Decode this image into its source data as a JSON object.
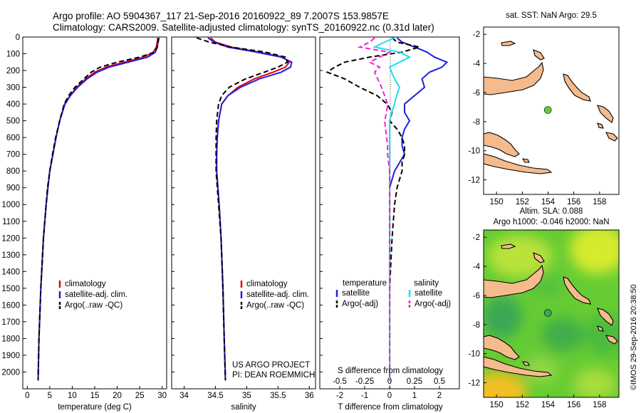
{
  "header": {
    "line1": "Argo profile: AO 5904367_117 21-Sep-2016 20160922_89 7.2007S 153.9857E",
    "line2": "Climatology: CARS2009. Satellite-adjusted climatology: synTS_20160922.nc (0.31d later)"
  },
  "credit": "©IMOS 29-Sep-2016 20:38:50",
  "colors": {
    "climatology": "#e8000b",
    "satellite": "#1f1fe0",
    "argo": "#000000",
    "cyan": "#22ddee",
    "magenta": "#ee22dd",
    "land": "#f5bb8c",
    "dot": "#66cc33"
  },
  "chart_data": [
    {
      "type": "line",
      "name": "temperature",
      "xlabel": "temperature (deg C)",
      "ylabel": "",
      "xlim": [
        -1,
        31
      ],
      "ylim": [
        2100,
        0
      ],
      "xticks": [
        "0",
        "5",
        "10",
        "15",
        "20",
        "25",
        "30"
      ],
      "yticks": [
        "0",
        "100",
        "200",
        "300",
        "400",
        "500",
        "600",
        "700",
        "800",
        "900",
        "1000",
        "1100",
        "1200",
        "1300",
        "1400",
        "1500",
        "1600",
        "1700",
        "1800",
        "1900",
        "2000"
      ],
      "legend": [
        "climatology",
        "satellite-adj. clim.",
        "Argo(..raw -QC)"
      ],
      "depth": [
        5,
        30,
        60,
        90,
        120,
        150,
        180,
        210,
        250,
        300,
        350,
        400,
        500,
        600,
        700,
        800,
        900,
        1000,
        1200,
        1500,
        1800,
        2050
      ],
      "series": [
        {
          "name": "climatology",
          "color": "#e8000b",
          "values": [
            29.0,
            28.9,
            28.7,
            28.0,
            26.0,
            21.5,
            17.5,
            15.0,
            13.0,
            11.0,
            9.5,
            8.3,
            7.2,
            6.4,
            5.7,
            5.0,
            4.6,
            4.2,
            3.6,
            3.0,
            2.6,
            2.4
          ]
        },
        {
          "name": "satellite-adj. clim.",
          "color": "#1f1fe0",
          "values": [
            29.3,
            29.1,
            28.9,
            28.5,
            26.8,
            22.5,
            18.2,
            15.5,
            13.3,
            11.2,
            9.6,
            8.4,
            7.2,
            6.4,
            5.7,
            5.0,
            4.6,
            4.2,
            3.6,
            3.0,
            2.6,
            2.4
          ]
        },
        {
          "name": "Argo(..raw -QC)",
          "color": "#000000",
          "dashed": true,
          "values": [
            29.2,
            29.1,
            28.9,
            28.4,
            25.0,
            20.0,
            16.2,
            14.2,
            12.6,
            10.6,
            9.2,
            8.2,
            7.2,
            6.3,
            5.6,
            5.0,
            4.5,
            4.2,
            3.6,
            3.0,
            2.6,
            2.4
          ]
        }
      ]
    },
    {
      "type": "line",
      "name": "salinity",
      "xlabel": "salinity",
      "xlim": [
        33.8,
        36.1
      ],
      "ylim": [
        2100,
        0
      ],
      "xticks": [
        "34",
        "34.5",
        "35",
        "35.5",
        "36"
      ],
      "legend": [
        "climatology",
        "satellite-adj. clim.",
        "Argo(..raw -QC)"
      ],
      "annotation": [
        "US ARGO PROJECT",
        "PI: DEAN ROEMMICH"
      ],
      "depth": [
        5,
        30,
        60,
        90,
        120,
        150,
        180,
        210,
        250,
        300,
        350,
        400,
        500,
        600,
        700,
        800,
        900,
        1000,
        1200,
        1500,
        1800,
        2050
      ],
      "series": [
        {
          "name": "climatology",
          "color": "#e8000b",
          "values": [
            34.42,
            34.5,
            34.75,
            35.2,
            35.58,
            35.68,
            35.62,
            35.42,
            35.12,
            34.86,
            34.7,
            34.6,
            34.55,
            34.53,
            34.52,
            34.52,
            34.54,
            34.56,
            34.59,
            34.62,
            34.64,
            34.66
          ]
        },
        {
          "name": "satellite-adj. clim.",
          "color": "#1f1fe0",
          "values": [
            34.38,
            34.48,
            34.7,
            35.15,
            35.55,
            35.72,
            35.7,
            35.55,
            35.2,
            34.9,
            34.7,
            34.6,
            34.55,
            34.53,
            34.52,
            34.52,
            34.54,
            34.56,
            34.59,
            34.62,
            34.64,
            34.66
          ]
        },
        {
          "name": "Argo(..raw -QC)",
          "color": "#000000",
          "dashed": true,
          "values": [
            34.2,
            34.4,
            34.75,
            35.3,
            35.62,
            35.65,
            35.5,
            35.28,
            34.98,
            34.72,
            34.6,
            34.55,
            34.52,
            34.51,
            34.51,
            34.51,
            34.53,
            34.55,
            34.59,
            34.62,
            34.64,
            34.66
          ]
        }
      ]
    },
    {
      "type": "line",
      "name": "differences",
      "xlabel": "T difference from climatology",
      "xlabel_top": "S difference from climatology",
      "xlim_T": [
        -2.8,
        2.8
      ],
      "xlim_S": [
        -0.7,
        0.7
      ],
      "ylim": [
        2100,
        0
      ],
      "xticks_T": [
        "-2",
        "-1",
        "0",
        "1",
        "2"
      ],
      "xticks_S": [
        "-0.5",
        "-0.25",
        "0",
        "0.25",
        "0.5"
      ],
      "legend_left_title": "temperature",
      "legend_right_title": "salinity",
      "legend": [
        "satellite",
        "Argo(-adj)",
        "satellite",
        "Argo(-adj)"
      ],
      "depth": [
        5,
        30,
        60,
        90,
        120,
        150,
        180,
        210,
        250,
        300,
        350,
        400,
        450,
        500,
        550,
        600,
        650,
        700,
        750,
        800,
        900,
        1000,
        1200,
        1500,
        1800,
        2050
      ],
      "series": [
        {
          "name": "satellite",
          "group": "temperature",
          "color": "#1f1fe0",
          "values": [
            0.3,
            0.5,
            1.0,
            1.5,
            1.8,
            2.3,
            2.1,
            1.6,
            1.3,
            1.4,
            1.0,
            0.6,
            0.6,
            0.8,
            0.6,
            0.5,
            0.5,
            0.6,
            0.4,
            0.2,
            0.0,
            0.0,
            0.0,
            0.0,
            0.0,
            0.0
          ]
        },
        {
          "name": "Argo(-adj)",
          "group": "temperature",
          "color": "#000000",
          "dashed": true,
          "values": [
            0.1,
            0.3,
            1.2,
            0.5,
            -0.8,
            -1.8,
            -2.2,
            -2.5,
            -1.8,
            -1.2,
            -0.5,
            -0.1,
            0.1,
            0.0,
            0.3,
            0.5,
            0.6,
            0.6,
            0.5,
            0.5,
            0.3,
            0.2,
            0.1,
            0.0,
            0.0,
            0.0
          ]
        },
        {
          "name": "satellite",
          "group": "salinity",
          "color": "#22ddee",
          "values": [
            0.05,
            -0.05,
            -0.15,
            0.1,
            0.2,
            0.1,
            0.0,
            0.02,
            0.05,
            0.1,
            0.07,
            0.05,
            0.02,
            0.0,
            0.0,
            0.0,
            0.0,
            0.0,
            0.0,
            0.0,
            0.0,
            0.0,
            0.0,
            0.0,
            0.0,
            0.0
          ]
        },
        {
          "name": "Argo(-adj)",
          "group": "salinity",
          "color": "#ee22dd",
          "dashed": true,
          "values": [
            -0.15,
            -0.2,
            -0.3,
            0.0,
            -0.1,
            -0.2,
            -0.1,
            -0.15,
            -0.12,
            -0.08,
            -0.05,
            -0.02,
            -0.03,
            -0.05,
            -0.04,
            -0.03,
            -0.02,
            -0.02,
            -0.01,
            0.0,
            0.0,
            0.0,
            0.0,
            0.0,
            0.0,
            0.0
          ]
        }
      ]
    },
    {
      "type": "scatter",
      "name": "sst_map",
      "title": "sat. SST: NaN Argo: 29.5",
      "xlim": [
        149,
        159.5
      ],
      "ylim": [
        -13,
        -1.5
      ],
      "xticks": [
        "150",
        "152",
        "154",
        "156",
        "158"
      ],
      "yticks": [
        "-2",
        "-4",
        "-6",
        "-8",
        "-10",
        "-12"
      ],
      "point": {
        "lon": 153.9857,
        "lat": -7.2007
      }
    },
    {
      "type": "heatmap",
      "name": "sla_map",
      "title": "Altim. SLA: 0.088",
      "subtitle": "Argo h1000: -0.046 h2000: NaN",
      "xlim": [
        149,
        159.5
      ],
      "ylim": [
        -13,
        -1.5
      ],
      "xticks": [
        "150",
        "152",
        "154",
        "156",
        "158"
      ],
      "yticks": [
        "-2",
        "-4",
        "-6",
        "-8",
        "-10",
        "-12"
      ],
      "point": {
        "lon": 153.9857,
        "lat": -7.2007
      }
    }
  ]
}
